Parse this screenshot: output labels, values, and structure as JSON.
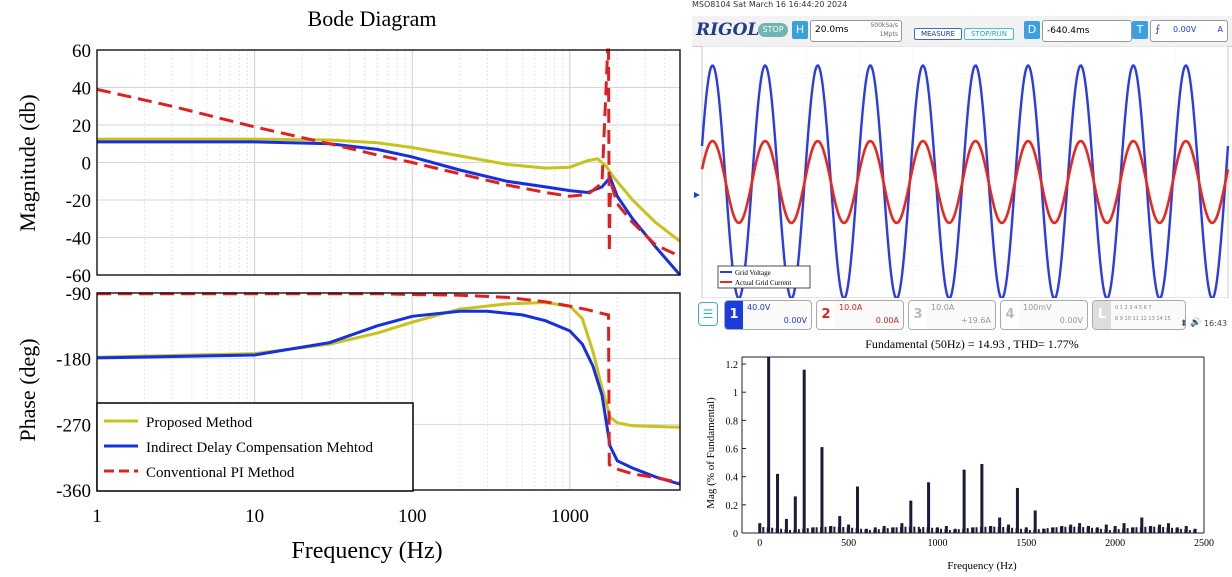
{
  "chart_data": [
    {
      "type": "line",
      "title": "Bode Diagram",
      "xscale": "log",
      "xlabel": "Frequency (Hz)",
      "xlim": [
        1,
        5000
      ],
      "xticks": [
        1,
        10,
        100,
        1000
      ],
      "xtick_labels": [
        "1",
        "10",
        "100",
        "1000"
      ],
      "subplots": [
        {
          "ylabel": "Magnitude (db)",
          "ylim": [
            -60,
            60
          ],
          "yticks": [
            -60,
            -40,
            -20,
            0,
            20,
            40,
            60
          ],
          "series": [
            {
              "name": "Proposed Method",
              "color": "#c8c21c",
              "dash": "solid",
              "x": [
                1,
                10,
                30,
                60,
                100,
                200,
                400,
                700,
                1000,
                1300,
                1500,
                1700,
                1900,
                2500,
                3500,
                5000
              ],
              "y": [
                12.5,
                12.5,
                12,
                10.5,
                8,
                3.5,
                -1,
                -3,
                -2.5,
                1,
                2,
                -2,
                -8,
                -20,
                -32,
                -42
              ]
            },
            {
              "name": "Indirect Delay Compensation Mehtod",
              "color": "#1530e0",
              "dash": "solid",
              "x": [
                1,
                10,
                30,
                60,
                100,
                200,
                400,
                700,
                1000,
                1300,
                1600,
                1800,
                2000,
                2500,
                3500,
                5000
              ],
              "y": [
                11,
                11,
                10,
                7,
                3,
                -4,
                -10,
                -13,
                -15,
                -16,
                -13,
                -8,
                -18,
                -30,
                -45,
                -60
              ]
            },
            {
              "name": "Conventional PI Method",
              "color": "#e02020",
              "dash": "dash",
              "x": [
                1,
                3,
                10,
                30,
                60,
                100,
                200,
                400,
                700,
                1000,
                1300,
                1600,
                1740,
                1760,
                1780,
                1800,
                1840,
                2000,
                2500,
                3500,
                5000
              ],
              "y": [
                39,
                30,
                19,
                10,
                4,
                0,
                -6,
                -12,
                -16,
                -18,
                -17,
                -11,
                60,
                60,
                -48,
                -20,
                -12,
                -22,
                -32,
                -44,
                -50
              ]
            }
          ]
        },
        {
          "ylabel": "Phase (deg)",
          "ylim": [
            -360,
            -90
          ],
          "yticks": [
            -360,
            -270,
            -180,
            -90
          ],
          "series": [
            {
              "name": "Proposed Method",
              "color": "#c8c21c",
              "dash": "solid",
              "x": [
                1,
                10,
                30,
                60,
                100,
                200,
                400,
                700,
                1000,
                1200,
                1400,
                1600,
                1800,
                2000,
                2500,
                3500,
                5000
              ],
              "y": [
                -178,
                -173,
                -160,
                -145,
                -130,
                -112,
                -105,
                -103,
                -108,
                -125,
                -170,
                -220,
                -260,
                -268,
                -272,
                -273,
                -274
              ]
            },
            {
              "name": "Indirect Delay Compensation Mehtod",
              "color": "#1530e0",
              "dash": "solid",
              "x": [
                1,
                10,
                30,
                60,
                100,
                200,
                300,
                500,
                700,
                1000,
                1200,
                1400,
                1600,
                1800,
                2000,
                2500,
                3500,
                5000
              ],
              "y": [
                -179,
                -175,
                -158,
                -135,
                -122,
                -115,
                -115,
                -120,
                -128,
                -142,
                -160,
                -190,
                -230,
                -300,
                -320,
                -330,
                -342,
                -352
              ]
            },
            {
              "name": "Conventional PI Method",
              "color": "#e02020",
              "dash": "dash",
              "x": [
                1,
                10,
                30,
                60,
                100,
                200,
                400,
                700,
                1000,
                1300,
                1600,
                1760,
                1780,
                1900,
                2500,
                3500,
                5000
              ],
              "y": [
                -91,
                -91,
                -91,
                -91,
                -92,
                -93,
                -96,
                -102,
                -108,
                -113,
                -118,
                -120,
                -325,
                -330,
                -338,
                -343,
                -350
              ]
            }
          ]
        }
      ],
      "legend": "bottom-left"
    },
    {
      "type": "line",
      "title": "",
      "x_per_div": "20.0ms",
      "series": [
        {
          "name": "Grid Voltage",
          "color": "#2a3ce8",
          "frequency_hz": 50,
          "amplitude_div": 3.7
        },
        {
          "name": "Actual Grid Current",
          "color": "#e8281c",
          "frequency_hz": 50,
          "amplitude_div": 1.3
        }
      ],
      "legend": "bottom-left"
    },
    {
      "type": "bar",
      "title": "Fundamental (50Hz) = 14.93 , THD= 1.77%",
      "xlabel": "Frequency (Hz)",
      "ylabel": "Mag (% of Fundamental)",
      "xlim": [
        -100,
        2500
      ],
      "ylim": [
        0,
        1.25
      ],
      "xticks": [
        0,
        500,
        1000,
        1500,
        2000,
        2500
      ],
      "yticks": [
        0,
        0.2,
        0.4,
        0.6,
        0.8,
        1,
        1.2
      ],
      "bars": [
        {
          "x": 0,
          "y": 0.07
        },
        {
          "x": 100,
          "y": 0.42
        },
        {
          "x": 150,
          "y": 0.1
        },
        {
          "x": 200,
          "y": 0.26
        },
        {
          "x": 250,
          "y": 1.16
        },
        {
          "x": 300,
          "y": 0.04
        },
        {
          "x": 350,
          "y": 0.61
        },
        {
          "x": 400,
          "y": 0.05
        },
        {
          "x": 450,
          "y": 0.12
        },
        {
          "x": 500,
          "y": 0.06
        },
        {
          "x": 550,
          "y": 0.33
        },
        {
          "x": 600,
          "y": 0.03
        },
        {
          "x": 650,
          "y": 0.04
        },
        {
          "x": 700,
          "y": 0.05
        },
        {
          "x": 750,
          "y": 0.04
        },
        {
          "x": 800,
          "y": 0.07
        },
        {
          "x": 850,
          "y": 0.23
        },
        {
          "x": 900,
          "y": 0.03
        },
        {
          "x": 950,
          "y": 0.36
        },
        {
          "x": 1000,
          "y": 0.04
        },
        {
          "x": 1050,
          "y": 0.05
        },
        {
          "x": 1100,
          "y": 0.03
        },
        {
          "x": 1150,
          "y": 0.45
        },
        {
          "x": 1200,
          "y": 0.04
        },
        {
          "x": 1250,
          "y": 0.49
        },
        {
          "x": 1300,
          "y": 0.05
        },
        {
          "x": 1350,
          "y": 0.11
        },
        {
          "x": 1400,
          "y": 0.06
        },
        {
          "x": 1450,
          "y": 0.32
        },
        {
          "x": 1500,
          "y": 0.04
        },
        {
          "x": 1550,
          "y": 0.16
        },
        {
          "x": 1600,
          "y": 0.03
        },
        {
          "x": 1650,
          "y": 0.04
        },
        {
          "x": 1700,
          "y": 0.05
        },
        {
          "x": 1750,
          "y": 0.06
        },
        {
          "x": 1800,
          "y": 0.07
        },
        {
          "x": 1850,
          "y": 0.05
        },
        {
          "x": 1900,
          "y": 0.04
        },
        {
          "x": 1950,
          "y": 0.06
        },
        {
          "x": 2000,
          "y": 0.05
        },
        {
          "x": 2050,
          "y": 0.07
        },
        {
          "x": 2100,
          "y": 0.04
        },
        {
          "x": 2150,
          "y": 0.11
        },
        {
          "x": 2200,
          "y": 0.05
        },
        {
          "x": 2250,
          "y": 0.06
        },
        {
          "x": 2300,
          "y": 0.07
        },
        {
          "x": 2350,
          "y": 0.04
        },
        {
          "x": 2400,
          "y": 0.05
        },
        {
          "x": 2450,
          "y": 0.03
        }
      ],
      "fundamental_bar": {
        "x": 50,
        "y": 1.25
      },
      "bar_color": "#1a1a3a"
    }
  ],
  "scope": {
    "header": "MSO8104  Sat March 16 16:44:20 2024",
    "logo": "RIGOL",
    "stop": "STOP",
    "h_label": "H",
    "timebase": "20.0ms",
    "sample_rate": "500kSa/s",
    "memory": "1Mpts",
    "measure": "MEASURE",
    "stoprun": "STOP/RUN",
    "d_label": "D",
    "delay": "-640.4ms",
    "t_label": "T",
    "trig_level": "0.00V",
    "trig_src": "A",
    "time": "16:43",
    "channels": [
      {
        "num": "1",
        "scale": "40.0V",
        "offset": "0.00V",
        "color": "#1a3ce0"
      },
      {
        "num": "2",
        "scale": "10.0A",
        "offset": "0.00A",
        "color": "#e02020"
      },
      {
        "num": "3",
        "scale": "10.0A",
        "offset": "+19.6A",
        "color": "#bbbbbb"
      },
      {
        "num": "4",
        "scale": "100mV",
        "offset": "0.00V",
        "color": "#bbbbbb"
      }
    ],
    "digital_label": "L",
    "digital_top": "0 1 2 3  4 5 6 7",
    "digital_bottom": "8 9 10 11  12 13 14 15"
  }
}
